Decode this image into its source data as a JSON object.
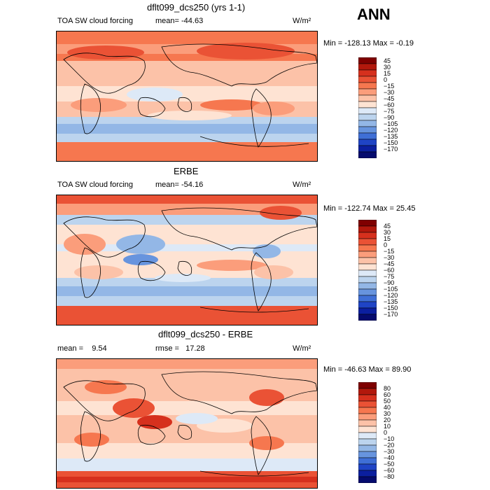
{
  "season": "ANN",
  "panels": [
    {
      "title": "dflt099_dcs250 (yrs 1-1)",
      "left_label": "TOA SW cloud forcing",
      "mean_label": "mean= -44.63",
      "rmse_label": "",
      "units": "W/m²",
      "minmax": "Min = -128.13 Max = -0.19",
      "levels": [
        "45",
        "30",
        "15",
        "0",
        "−15",
        "−30",
        "−45",
        "−60",
        "−75",
        "−90",
        "−105",
        "−120",
        "−135",
        "−150",
        "−170"
      ],
      "colors": [
        "#7f0000",
        "#b2180c",
        "#d6301d",
        "#ea5235",
        "#f6774f",
        "#fb9d7b",
        "#fcc2a8",
        "#fee3d3",
        "#dde9f7",
        "#bcd4ee",
        "#93b7e6",
        "#6794de",
        "#3f6fd6",
        "#1f44c5",
        "#0b1f9f",
        "#050b6e"
      ]
    },
    {
      "title": "ERBE",
      "left_label": "TOA SW cloud forcing",
      "mean_label": "mean= -54.16",
      "rmse_label": "",
      "units": "W/m²",
      "minmax": "Min = -122.74 Max = 25.45",
      "levels": [
        "45",
        "30",
        "15",
        "0",
        "−15",
        "−30",
        "−45",
        "−60",
        "−75",
        "−90",
        "−105",
        "−120",
        "−135",
        "−150",
        "−170"
      ],
      "colors": [
        "#7f0000",
        "#b2180c",
        "#d6301d",
        "#ea5235",
        "#f6774f",
        "#fb9d7b",
        "#fcc2a8",
        "#fee3d3",
        "#dde9f7",
        "#bcd4ee",
        "#93b7e6",
        "#6794de",
        "#3f6fd6",
        "#1f44c5",
        "#0b1f9f",
        "#050b6e"
      ]
    },
    {
      "title": "dflt099_dcs250 - ERBE",
      "left_label": "mean =    9.54",
      "mean_label": "",
      "rmse_label": "rmse =   17.28",
      "units": "W/m²",
      "minmax": "Min = -46.63 Max = 89.90",
      "levels": [
        "80",
        "60",
        "50",
        "40",
        "30",
        "20",
        "10",
        "0",
        "−10",
        "−20",
        "−30",
        "−40",
        "−50",
        "−60",
        "−80"
      ],
      "colors": [
        "#7f0000",
        "#b2180c",
        "#d6301d",
        "#ea5235",
        "#f6774f",
        "#fb9d7b",
        "#fcc2a8",
        "#fee3d3",
        "#dde9f7",
        "#bcd4ee",
        "#93b7e6",
        "#6794de",
        "#3f6fd6",
        "#1f44c5",
        "#0b1f9f",
        "#050b6e"
      ]
    }
  ]
}
